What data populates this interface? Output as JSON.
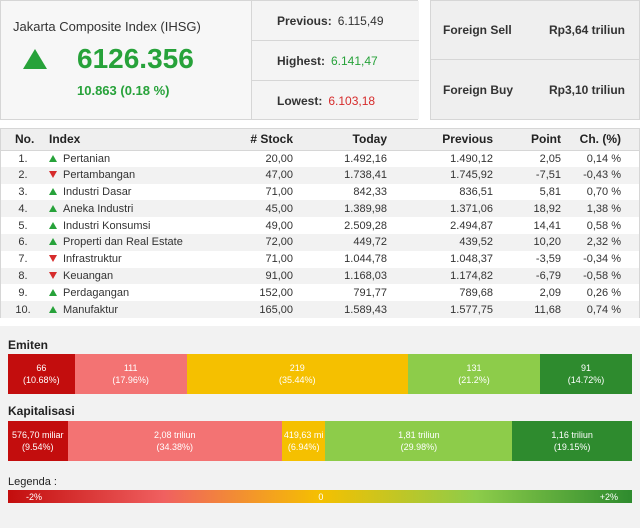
{
  "index": {
    "title": "Jakarta Composite Index (IHSG)",
    "value": "6126.356",
    "change": "10.863 (0.18 %)",
    "previous_label": "Previous:",
    "previous_value": "6.115,49",
    "highest_label": "Highest:",
    "highest_value": "6.141,47",
    "lowest_label": "Lowest:",
    "lowest_value": "6.103,18"
  },
  "foreign": {
    "sell_label": "Foreign Sell",
    "sell_value": "Rp3,64 triliun",
    "buy_label": "Foreign Buy",
    "buy_value": "Rp3,10 triliun"
  },
  "table": {
    "headers": [
      "No.",
      "Index",
      "# Stock",
      "Today",
      "Previous",
      "Point",
      "Ch. (%)"
    ],
    "rows": [
      {
        "no": "1.",
        "name": "Pertanian",
        "dir": "up",
        "stock": "20,00",
        "today": "1.492,16",
        "previous": "1.490,12",
        "point": "2,05",
        "ch": "0,14 %"
      },
      {
        "no": "2.",
        "name": "Pertambangan",
        "dir": "down",
        "stock": "47,00",
        "today": "1.738,41",
        "previous": "1.745,92",
        "point": "-7,51",
        "ch": "-0,43 %"
      },
      {
        "no": "3.",
        "name": "Industri Dasar",
        "dir": "up",
        "stock": "71,00",
        "today": "842,33",
        "previous": "836,51",
        "point": "5,81",
        "ch": "0,70 %"
      },
      {
        "no": "4.",
        "name": "Aneka Industri",
        "dir": "up",
        "stock": "45,00",
        "today": "1.389,98",
        "previous": "1.371,06",
        "point": "18,92",
        "ch": "1,38 %"
      },
      {
        "no": "5.",
        "name": "Industri Konsumsi",
        "dir": "up",
        "stock": "49,00",
        "today": "2.509,28",
        "previous": "2.494,87",
        "point": "14,41",
        "ch": "0,58 %"
      },
      {
        "no": "6.",
        "name": "Properti dan Real Estate",
        "dir": "up",
        "stock": "72,00",
        "today": "449,72",
        "previous": "439,52",
        "point": "10,20",
        "ch": "2,32 %"
      },
      {
        "no": "7.",
        "name": "Infrastruktur",
        "dir": "down",
        "stock": "71,00",
        "today": "1.044,78",
        "previous": "1.048,37",
        "point": "-3,59",
        "ch": "-0,34 %"
      },
      {
        "no": "8.",
        "name": "Keuangan",
        "dir": "down",
        "stock": "91,00",
        "today": "1.168,03",
        "previous": "1.174,82",
        "point": "-6,79",
        "ch": "-0,58 %"
      },
      {
        "no": "9.",
        "name": "Perdagangan",
        "dir": "up",
        "stock": "152,00",
        "today": "791,77",
        "previous": "789,68",
        "point": "2,09",
        "ch": "0,26 %"
      },
      {
        "no": "10.",
        "name": "Manufaktur",
        "dir": "up",
        "stock": "165,00",
        "today": "1.589,43",
        "previous": "1.577,75",
        "point": "11,68",
        "ch": "0,74 %"
      }
    ]
  },
  "emiten": {
    "title": "Emiten",
    "segments": [
      {
        "value": "66",
        "pct": "(10.68%)",
        "share": 10.68,
        "color": "#c30d0d"
      },
      {
        "value": "111",
        "pct": "(17.96%)",
        "share": 17.96,
        "color": "#f37373"
      },
      {
        "value": "219",
        "pct": "(35.44%)",
        "share": 35.44,
        "color": "#f5c000"
      },
      {
        "value": "131",
        "pct": "(21.2%)",
        "share": 21.2,
        "color": "#8dcc4a"
      },
      {
        "value": "91",
        "pct": "(14.72%)",
        "share": 14.72,
        "color": "#2e8b2e"
      }
    ]
  },
  "kapitalisasi": {
    "title": "Kapitalisasi",
    "segments": [
      {
        "value": "576,70 miliar",
        "pct": "(9.54%)",
        "share": 9.54,
        "color": "#c30d0d"
      },
      {
        "value": "2,08 triliun",
        "pct": "(34.38%)",
        "share": 34.38,
        "color": "#f37373"
      },
      {
        "value": "419,63 mi",
        "pct": "(6.94%)",
        "share": 6.94,
        "color": "#f5c000"
      },
      {
        "value": "1,81 triliun",
        "pct": "(29.98%)",
        "share": 29.98,
        "color": "#8dcc4a"
      },
      {
        "value": "1,16 triliun",
        "pct": "(19.15%)",
        "share": 19.15,
        "color": "#2e8b2e"
      }
    ]
  },
  "legend": {
    "label": "Legenda :",
    "min": "-2%",
    "mid": "0",
    "max": "+2%"
  }
}
